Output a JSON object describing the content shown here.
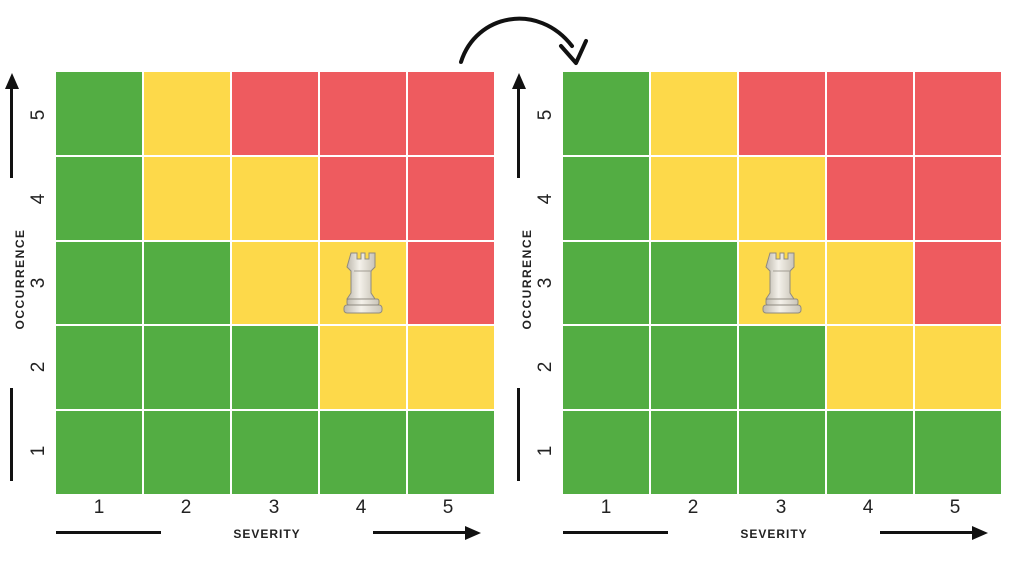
{
  "colors": {
    "green": "#53ad43",
    "yellow": "#fdd94a",
    "red": "#ee5b5f"
  },
  "cell_colors_by_row_top_to_bottom": {
    "row_5": [
      "green",
      "yellow",
      "red",
      "red",
      "red"
    ],
    "row_4": [
      "green",
      "yellow",
      "yellow",
      "red",
      "red"
    ],
    "row_3": [
      "green",
      "green",
      "yellow",
      "yellow",
      "red"
    ],
    "row_2": [
      "green",
      "green",
      "green",
      "yellow",
      "yellow"
    ],
    "row_1": [
      "green",
      "green",
      "green",
      "green",
      "green"
    ]
  },
  "matrices": [
    {
      "id": "before",
      "x_axis_label": "SEVERITY",
      "y_axis_label": "OCCURRENCE",
      "x_ticks": [
        "1",
        "2",
        "3",
        "4",
        "5"
      ],
      "y_ticks": [
        "5",
        "4",
        "3",
        "2",
        "1"
      ],
      "rook_position": {
        "severity": 4,
        "occurrence": 3
      },
      "rook_icon": "chess-rook-icon"
    },
    {
      "id": "after",
      "x_axis_label": "SEVERITY",
      "y_axis_label": "OCCURRENCE",
      "x_ticks": [
        "1",
        "2",
        "3",
        "4",
        "5"
      ],
      "y_ticks": [
        "5",
        "4",
        "3",
        "2",
        "1"
      ],
      "rook_position": {
        "severity": 3,
        "occurrence": 3
      },
      "rook_icon": "chess-rook-icon"
    }
  ],
  "transition_icon": "curved-arrow-icon"
}
